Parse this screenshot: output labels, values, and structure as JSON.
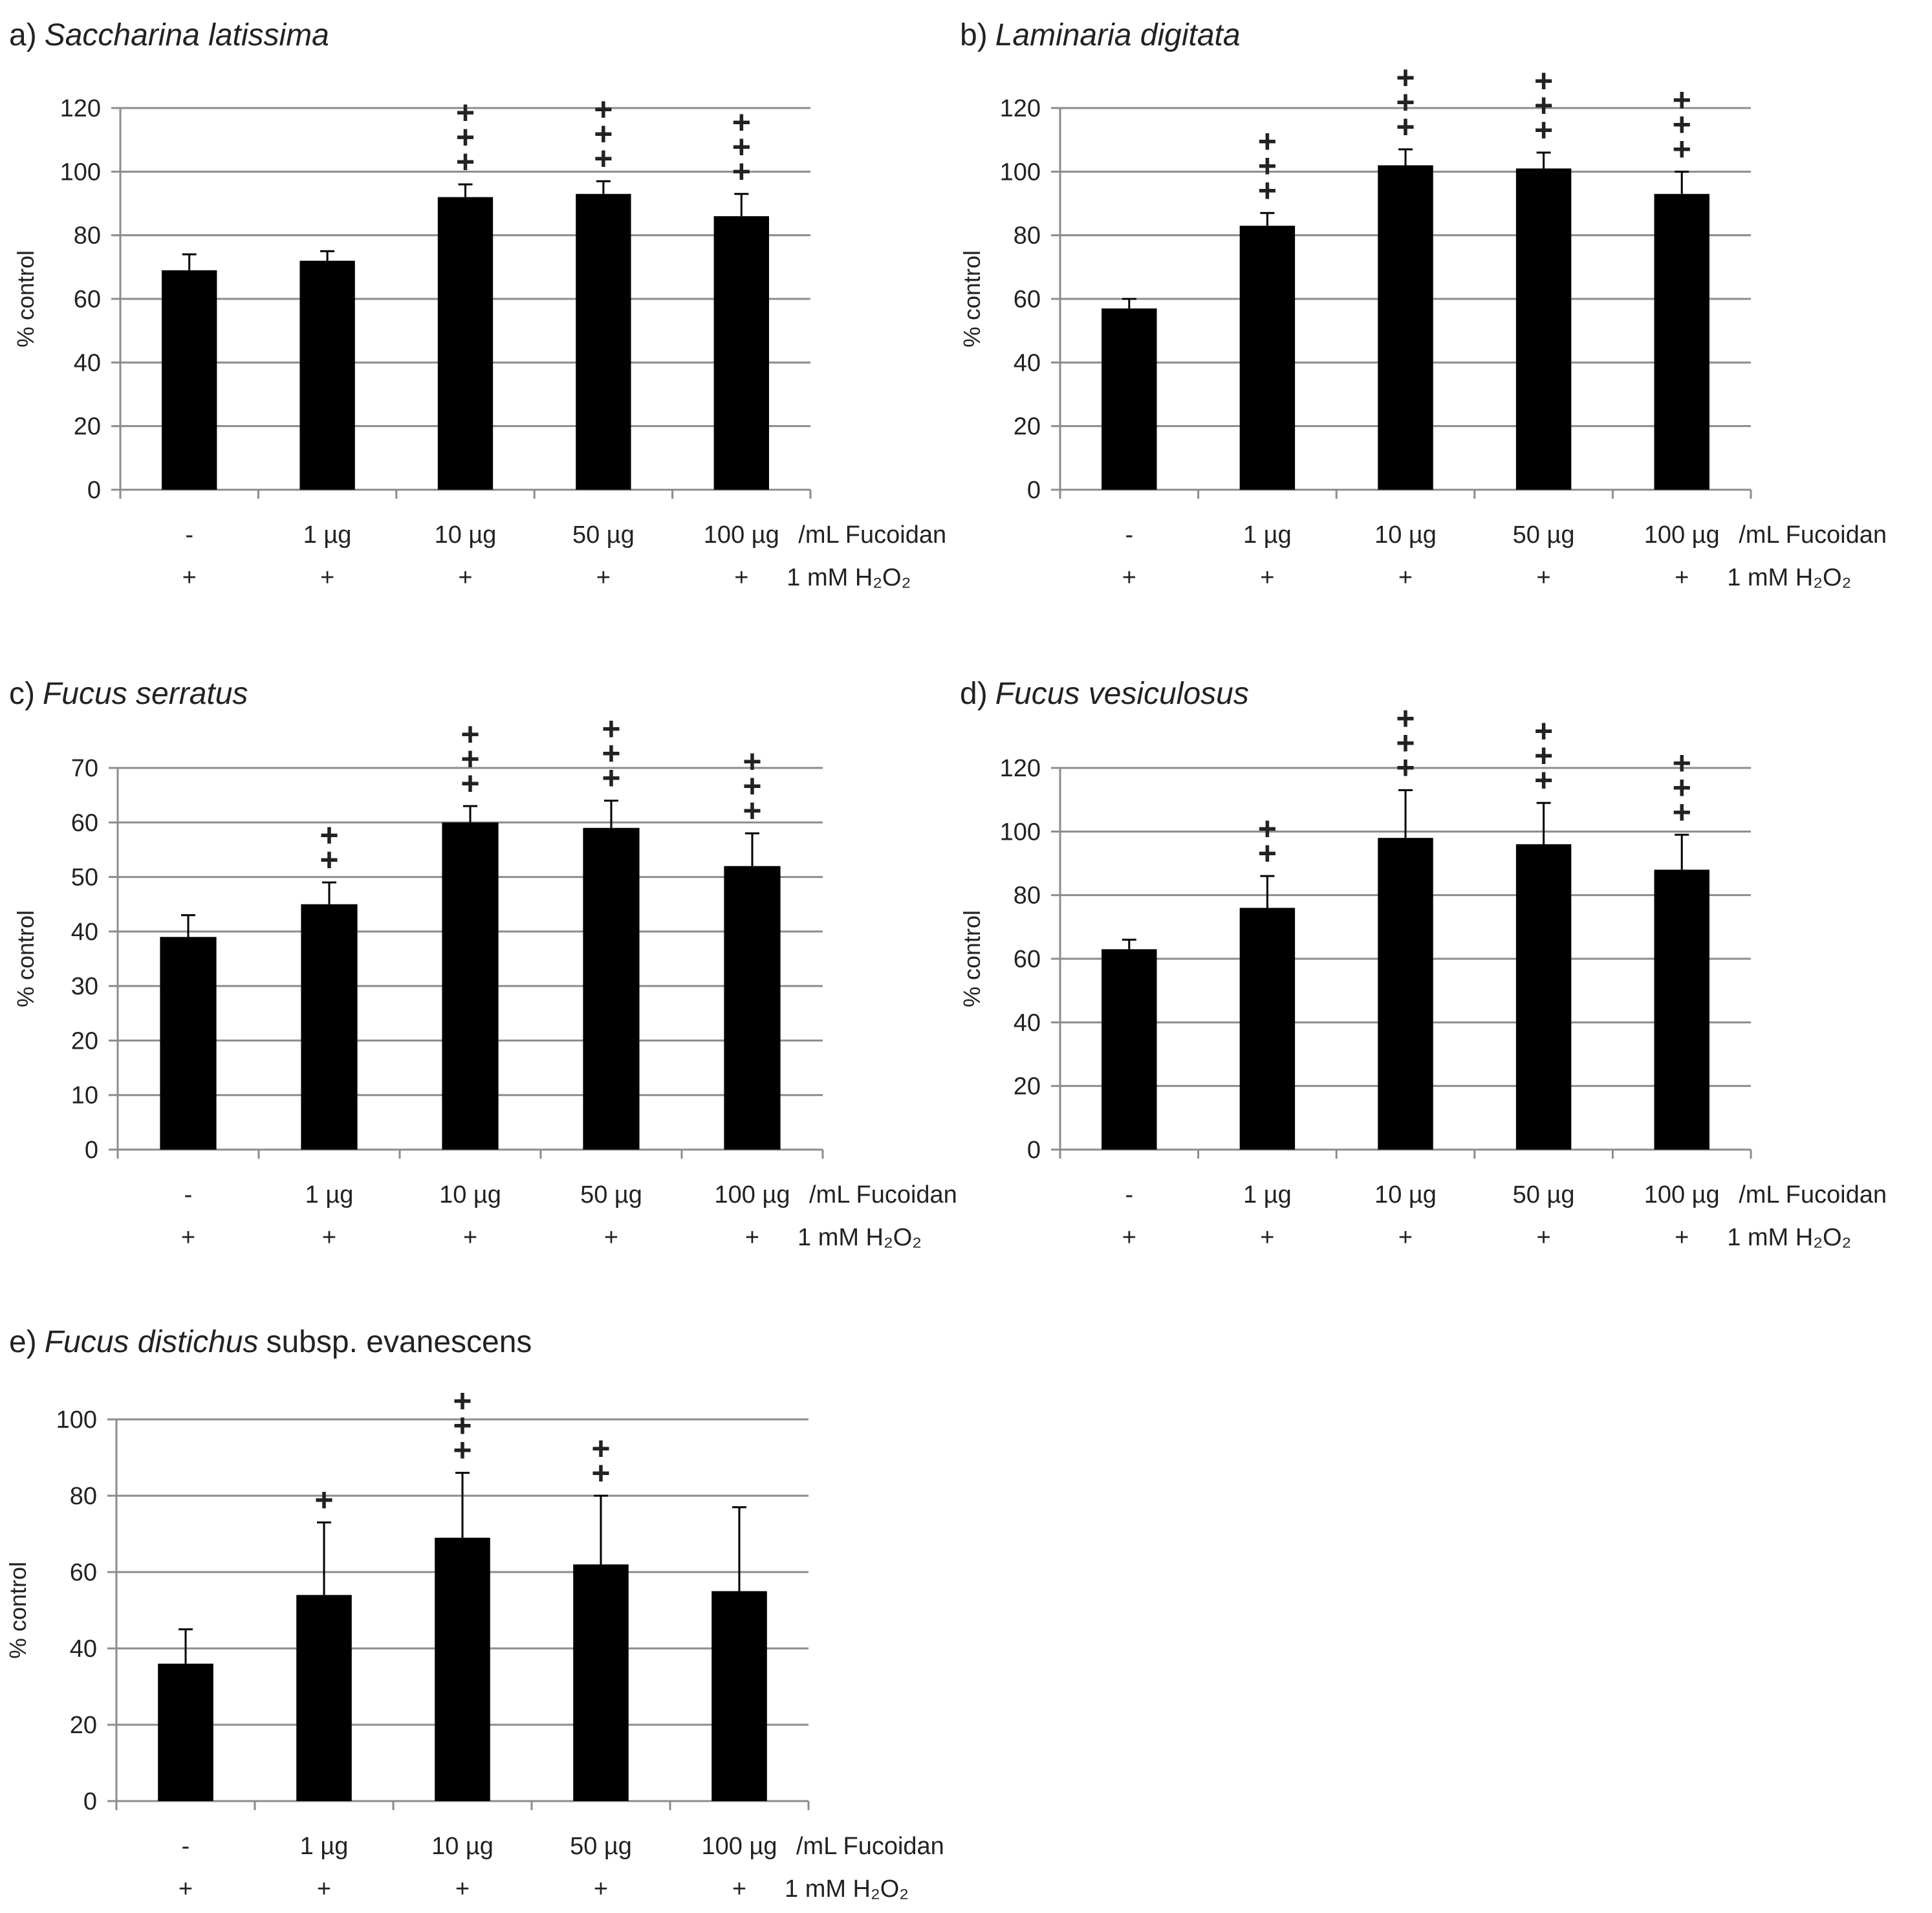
{
  "colors": {
    "bar": "#000000",
    "grid": "#8c8c8c",
    "text": "#222222",
    "background": "#ffffff"
  },
  "chart_data": [
    {
      "type": "bar",
      "panel": "a)",
      "species": "Saccharina latissima",
      "title_suffix": "",
      "ylabel": "% control",
      "ylim": [
        0,
        120
      ],
      "yticks": [
        0,
        20,
        40,
        60,
        80,
        100,
        120
      ],
      "categories": [
        "-",
        "1  µg",
        "10 µg",
        "50 µg",
        "100 µg"
      ],
      "x_suffix": "/mL Fucoidan",
      "h2o2_marks": [
        "+",
        "+",
        "+",
        "+",
        "+"
      ],
      "h2o2_label": "1 mM H₂O₂",
      "values": [
        69,
        72,
        92,
        93,
        86
      ],
      "errors": [
        5,
        3,
        4,
        4,
        7
      ],
      "significance": [
        "",
        "",
        "+++",
        "+++",
        "+++"
      ]
    },
    {
      "type": "bar",
      "panel": "b)",
      "species": "Laminaria digitata",
      "title_suffix": "",
      "ylabel": "% control",
      "ylim": [
        0,
        120
      ],
      "yticks": [
        0,
        20,
        40,
        60,
        80,
        100,
        120
      ],
      "categories": [
        "-",
        "1  µg",
        "10 µg",
        "50 µg",
        "100 µg"
      ],
      "x_suffix": "/mL Fucoidan",
      "h2o2_marks": [
        "+",
        "+",
        "+",
        "+",
        "+"
      ],
      "h2o2_label": "1 mM H₂O₂",
      "values": [
        57,
        83,
        102,
        101,
        93
      ],
      "errors": [
        3,
        4,
        5,
        5,
        7
      ],
      "significance": [
        "",
        "+++",
        "+++",
        "+++",
        "+++"
      ]
    },
    {
      "type": "bar",
      "panel": "c)",
      "species": "Fucus serratus",
      "title_suffix": "",
      "ylabel": "% control",
      "ylim": [
        0,
        70
      ],
      "yticks": [
        0,
        10,
        20,
        30,
        40,
        50,
        60,
        70
      ],
      "categories": [
        "-",
        "1  µg",
        "10 µg",
        "50 µg",
        "100 µg"
      ],
      "x_suffix": "/mL Fucoidan",
      "h2o2_marks": [
        "+",
        "+",
        "+",
        "+",
        "+"
      ],
      "h2o2_label": "1 mM H₂O₂",
      "values": [
        39,
        45,
        60,
        59,
        52
      ],
      "errors": [
        4,
        4,
        3,
        5,
        6
      ],
      "significance": [
        "",
        "++",
        "+++",
        "+++",
        "+++"
      ]
    },
    {
      "type": "bar",
      "panel": "d)",
      "species": "Fucus vesiculosus",
      "title_suffix": "",
      "ylabel": "% control",
      "ylim": [
        0,
        120
      ],
      "yticks": [
        0,
        20,
        40,
        60,
        80,
        100,
        120
      ],
      "categories": [
        "-",
        "1  µg",
        "10 µg",
        "50 µg",
        "100 µg"
      ],
      "x_suffix": "/mL Fucoidan",
      "h2o2_marks": [
        "+",
        "+",
        "+",
        "+",
        "+"
      ],
      "h2o2_label": "1 mM H₂O₂",
      "values": [
        63,
        76,
        98,
        96,
        88
      ],
      "errors": [
        3,
        10,
        15,
        13,
        11
      ],
      "significance": [
        "",
        "++",
        "+++",
        "+++",
        "+++"
      ]
    },
    {
      "type": "bar",
      "panel": "e)",
      "species": "Fucus distichus",
      "title_suffix": "subsp. evanescens",
      "ylabel": "% control",
      "ylim": [
        0,
        100
      ],
      "yticks": [
        0,
        20,
        40,
        60,
        80,
        100
      ],
      "categories": [
        "-",
        "1  µg",
        "10 µg",
        "50 µg",
        "100 µg"
      ],
      "x_suffix": "/mL Fucoidan",
      "h2o2_marks": [
        "+",
        "+",
        "+",
        "+",
        "+"
      ],
      "h2o2_label": "1 mM H₂O₂",
      "values": [
        36,
        54,
        69,
        62,
        55
      ],
      "errors": [
        9,
        19,
        17,
        18,
        22
      ],
      "significance": [
        "",
        "+",
        "+++",
        "++",
        ""
      ]
    }
  ]
}
